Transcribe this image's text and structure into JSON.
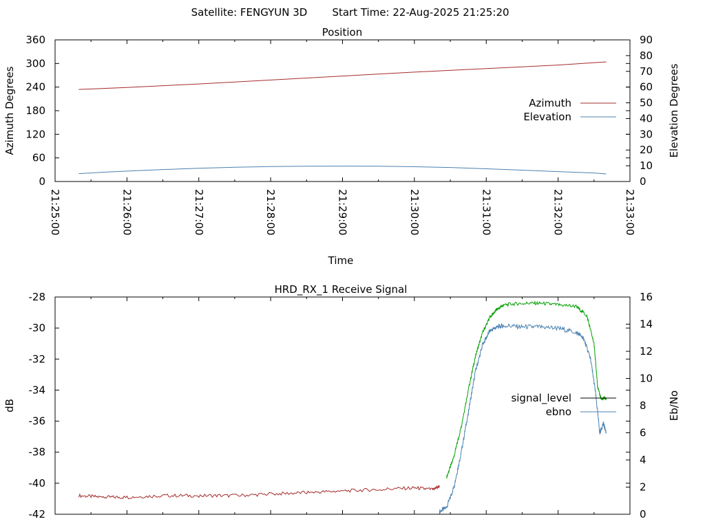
{
  "header": {
    "satellite_text": "Satellite: FENGYUN 3D",
    "start_time_text": "Start Time: 22-Aug-2025 21:25:20"
  },
  "chart_data": [
    {
      "type": "line",
      "title": "Position",
      "xlabel": "Time",
      "ylabel": "Azimuth Degrees",
      "y2label": "Elevation Degrees",
      "x_ticks": [
        "21:25:00",
        "21:26:00",
        "21:27:00",
        "21:28:00",
        "21:29:00",
        "21:30:00",
        "21:31:00",
        "21:32:00",
        "21:33:00"
      ],
      "xlim_minutes": [
        0,
        8
      ],
      "ylim": [
        0,
        360
      ],
      "y_ticks": [
        0,
        60,
        120,
        180,
        240,
        300,
        360
      ],
      "y2lim": [
        0,
        90
      ],
      "y2_ticks": [
        0,
        10,
        20,
        30,
        40,
        50,
        60,
        70,
        80,
        90
      ],
      "legend_position": "right",
      "grid": false,
      "series": [
        {
          "name": "Azimuth",
          "axis": "y",
          "color": "#a52a2a",
          "x_minutes": [
            0.33,
            1,
            2,
            3,
            4,
            5,
            6,
            7,
            7.67
          ],
          "values": [
            234,
            239,
            248,
            258,
            268,
            278,
            287,
            296,
            304
          ]
        },
        {
          "name": "Elevation",
          "axis": "y2",
          "color": "#4a80b0",
          "x_minutes": [
            0.33,
            0.67,
            1,
            1.5,
            2,
            2.5,
            3,
            3.5,
            4,
            4.5,
            5,
            5.5,
            6,
            6.5,
            7,
            7.5,
            7.67
          ],
          "values": [
            5,
            5.9,
            6.6,
            7.6,
            8.4,
            9.1,
            9.5,
            9.7,
            9.8,
            9.7,
            9.4,
            8.9,
            8.1,
            7.2,
            6.3,
            5.4,
            4.8
          ]
        }
      ]
    },
    {
      "type": "line",
      "title": "HRD_RX_1 Receive Signal",
      "xlabel": "",
      "ylabel": "dB",
      "y2label": "Eb/No",
      "xlim_minutes": [
        0,
        8
      ],
      "ylim": [
        -42,
        -28
      ],
      "y_ticks": [
        -42,
        -40,
        -38,
        -36,
        -34,
        -32,
        -30,
        -28
      ],
      "y2lim": [
        0,
        16
      ],
      "y2_ticks": [
        0,
        2,
        4,
        6,
        8,
        10,
        12,
        14,
        16
      ],
      "legend_position": "right",
      "grid": false,
      "series": [
        {
          "name": "signal_level",
          "axis": "y",
          "color": "#000000",
          "segment_colors": [
            {
              "from_minutes": 0.33,
              "to_minutes": 5.4,
              "color": "#a52a2a"
            },
            {
              "from_minutes": 5.4,
              "to_minutes": 7.67,
              "color": "#00a000"
            }
          ],
          "x_minutes": [
            0.33,
            0.67,
            1,
            1.5,
            2,
            2.5,
            3,
            3.5,
            4,
            4.5,
            5,
            5.25,
            5.35,
            5.45,
            5.55,
            5.65,
            5.75,
            5.85,
            5.95,
            6.05,
            6.15,
            6.25,
            6.5,
            6.75,
            7,
            7.25,
            7.4,
            7.5,
            7.55,
            7.6,
            7.67
          ],
          "values": [
            -40.8,
            -40.9,
            -40.9,
            -40.8,
            -40.8,
            -40.8,
            -40.7,
            -40.6,
            -40.5,
            -40.4,
            -40.3,
            -40.4,
            -40.2,
            -39.6,
            -38.3,
            -36.4,
            -34.0,
            -31.8,
            -30.3,
            -29.3,
            -28.8,
            -28.5,
            -28.4,
            -28.4,
            -28.5,
            -28.6,
            -29.2,
            -31.0,
            -33.8,
            -34.6,
            -34.5
          ]
        },
        {
          "name": "ebno",
          "axis": "y2",
          "color": "#4a80b0",
          "x_minutes": [
            5.35,
            5.45,
            5.55,
            5.65,
            5.75,
            5.85,
            5.95,
            6.05,
            6.15,
            6.25,
            6.5,
            6.75,
            7,
            7.25,
            7.35,
            7.45,
            7.52,
            7.58,
            7.63,
            7.67
          ],
          "values": [
            0.2,
            0.5,
            2.0,
            4.5,
            7.5,
            10.5,
            12.5,
            13.5,
            13.8,
            13.9,
            13.8,
            13.8,
            13.7,
            13.4,
            13.0,
            11.5,
            9.0,
            6.0,
            6.7,
            6.0
          ]
        }
      ]
    }
  ]
}
